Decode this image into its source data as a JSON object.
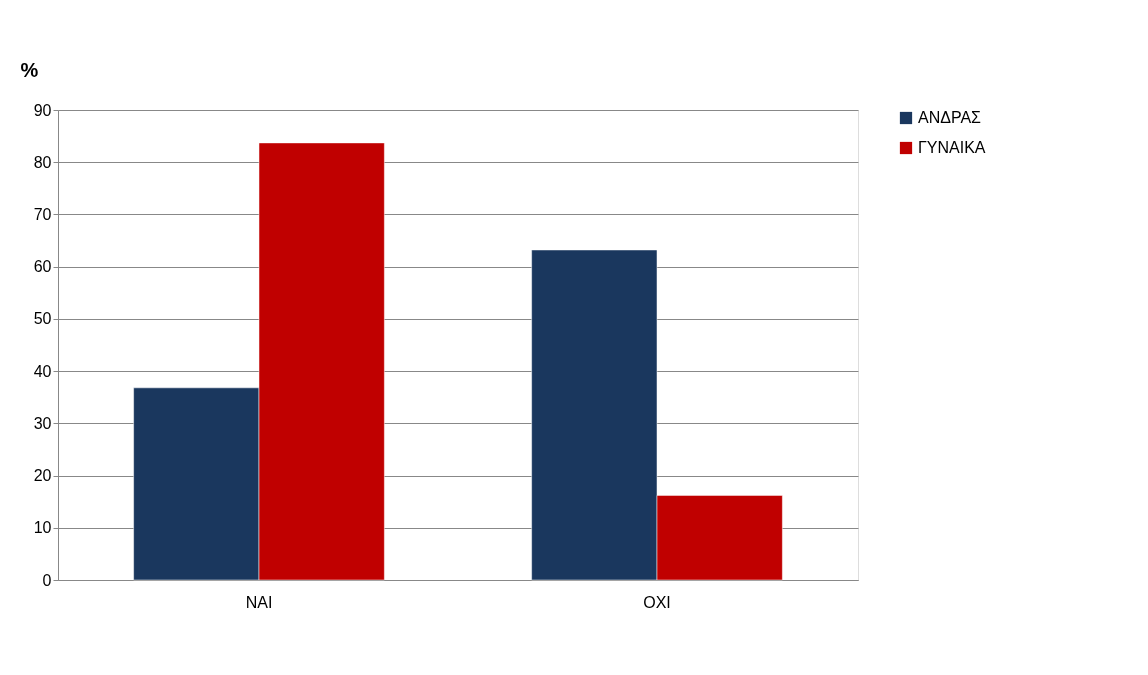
{
  "chart_data": {
    "type": "bar",
    "ylabel": "%",
    "categories": [
      "ΝΑΙ",
      "ΟΧΙ"
    ],
    "series": [
      {
        "name": "ΑΝΔΡΑΣ",
        "color": "#1a375e",
        "values": [
          36.8,
          63.2
        ]
      },
      {
        "name": "ΓΥΝΑΙΚΑ",
        "color": "#c00000",
        "values": [
          83.7,
          16.2
        ]
      }
    ],
    "ylim": [
      0,
      90
    ],
    "yticks": [
      0,
      10,
      20,
      30,
      40,
      50,
      60,
      70,
      80,
      90
    ],
    "grid": "y",
    "legend": "right"
  }
}
